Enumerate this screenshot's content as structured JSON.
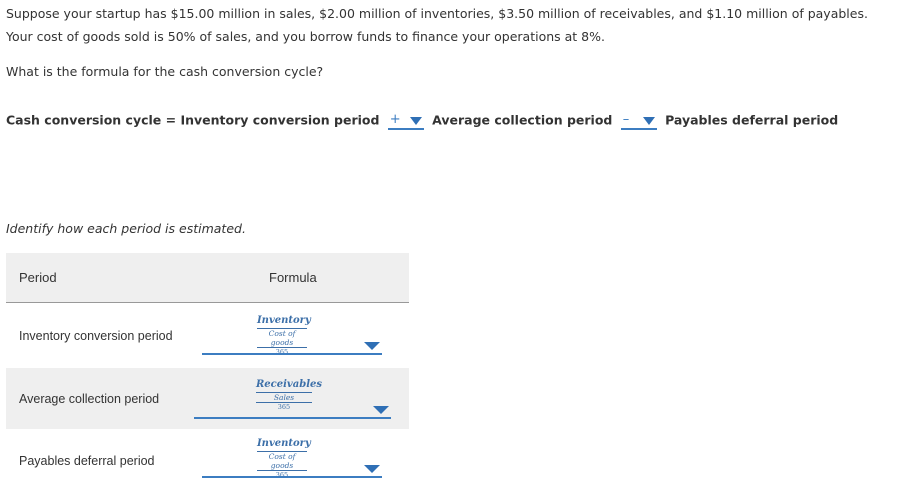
{
  "question": {
    "text": "Suppose your startup has $15.00 million in sales, $2.00 million of inventories, $3.50 million of receivables, and $1.10 million of payables. Your cost of goods sold is 50% of sales, and you borrow funds to finance your operations at 8%.",
    "ask": "What is the formula for the cash conversion cycle?"
  },
  "formula_line": {
    "lhs": "Cash conversion cycle =",
    "term1": "Inventory conversion period",
    "op1": "+",
    "term2": "Average collection period",
    "op2": "–",
    "term3": "Payables deferral period"
  },
  "identify_text": "Identify how each period is estimated.",
  "table": {
    "headers": {
      "period": "Period",
      "formula": "Formula"
    },
    "rows": [
      {
        "label": "Inventory conversion period",
        "num": "Inventory",
        "den_top": "Cost of goods",
        "den_bottom": "365"
      },
      {
        "label": "Average collection period",
        "num": "Receivables",
        "den_top": "Sales",
        "den_bottom": "365"
      },
      {
        "label": "Payables deferral period",
        "num": "Inventory",
        "den_top": "Cost of goods",
        "den_bottom": "365"
      }
    ]
  },
  "colors": {
    "accent": "#2f6fb5",
    "row_shade": "#efefef",
    "text": "#333333"
  },
  "icons": {
    "dropdown": "caret-down-icon"
  }
}
